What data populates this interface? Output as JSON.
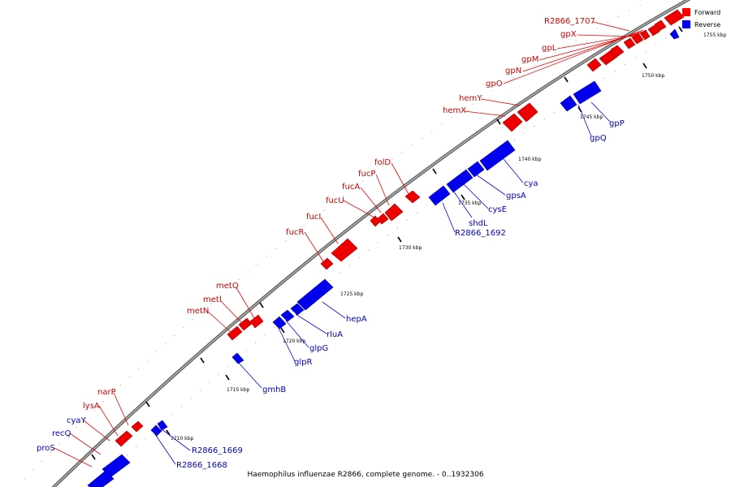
{
  "title": "Haemophilus influenzae R2866, complete genome. - 0..1932306",
  "legend": {
    "forward": {
      "label": "Forward",
      "color": "#ff0000"
    },
    "reverse": {
      "label": "Reverse",
      "color": "#0000ff"
    }
  },
  "ticks": [
    "1710 kbp",
    "1715 kbp",
    "1720 kbp",
    "1725 kbp",
    "1730 kbp",
    "1735 kbp",
    "1740 kbp",
    "1745 kbp",
    "1750 kbp",
    "1755 kbp"
  ],
  "genes_forward": [
    "narP",
    "lysA",
    "cyaY",
    "recQ",
    "proS",
    "metQ",
    "metI",
    "metN",
    "fucR",
    "fucI",
    "fucU",
    "fucA",
    "fucP",
    "folD",
    "hemY",
    "hemX",
    "R2866_1707",
    "gpX",
    "gpL",
    "gpM",
    "gpN",
    "gpO"
  ],
  "genes_reverse": [
    "R2866_1669",
    "R2866_1668",
    "gmhB",
    "glpR",
    "glpG",
    "rluA",
    "hepA",
    "shdL",
    "R2866_1692",
    "cysE",
    "gpsA",
    "cya",
    "gpP",
    "gpQ"
  ]
}
